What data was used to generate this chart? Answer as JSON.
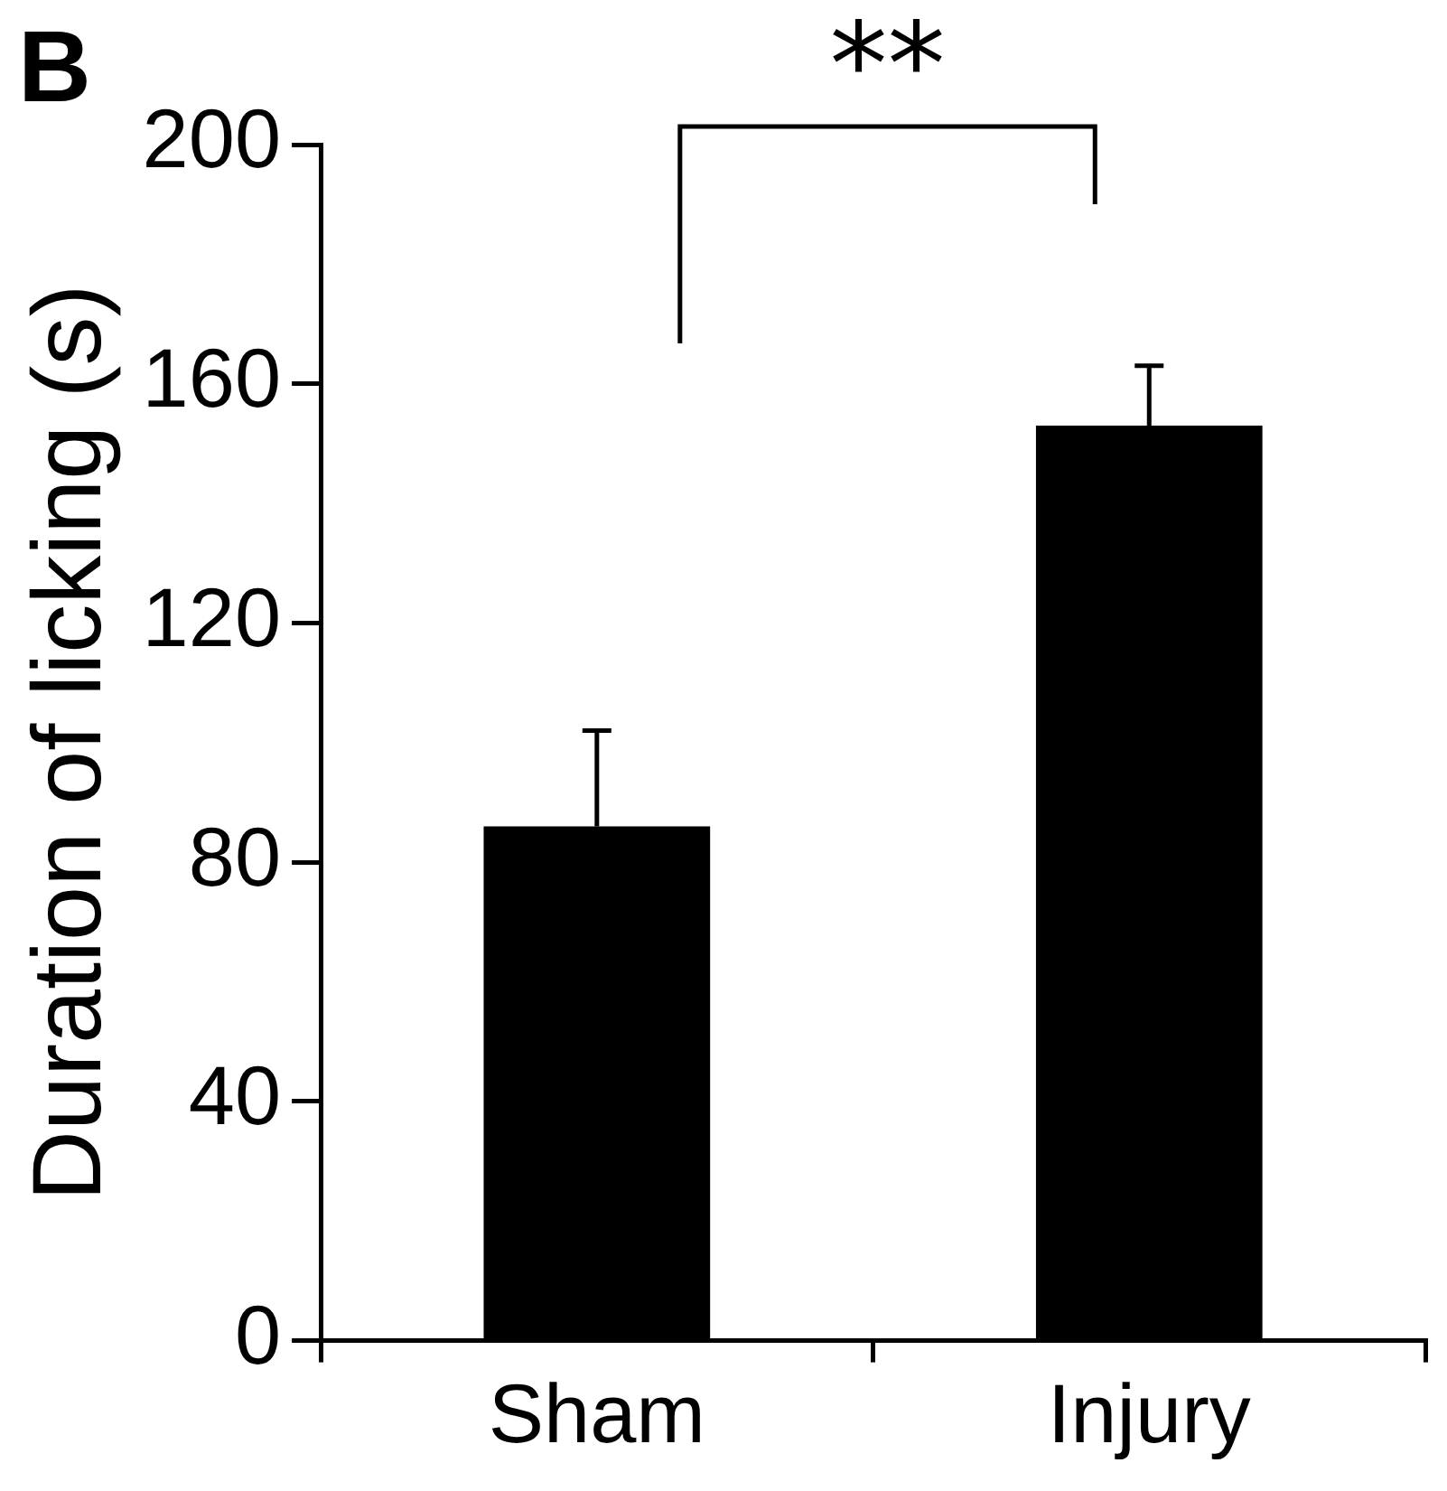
{
  "chart_data": {
    "type": "bar",
    "ylabel": "Duration of licking (s)",
    "categories": [
      "Sham",
      "Injury"
    ],
    "values": [
      86,
      153
    ],
    "errors": [
      16,
      10
    ],
    "color": "#000000",
    "ylim": [
      0,
      200
    ],
    "yticks": [
      0,
      40,
      80,
      120,
      160,
      200
    ],
    "grid": false,
    "legend": false,
    "annotations": [
      "B",
      "**"
    ]
  }
}
